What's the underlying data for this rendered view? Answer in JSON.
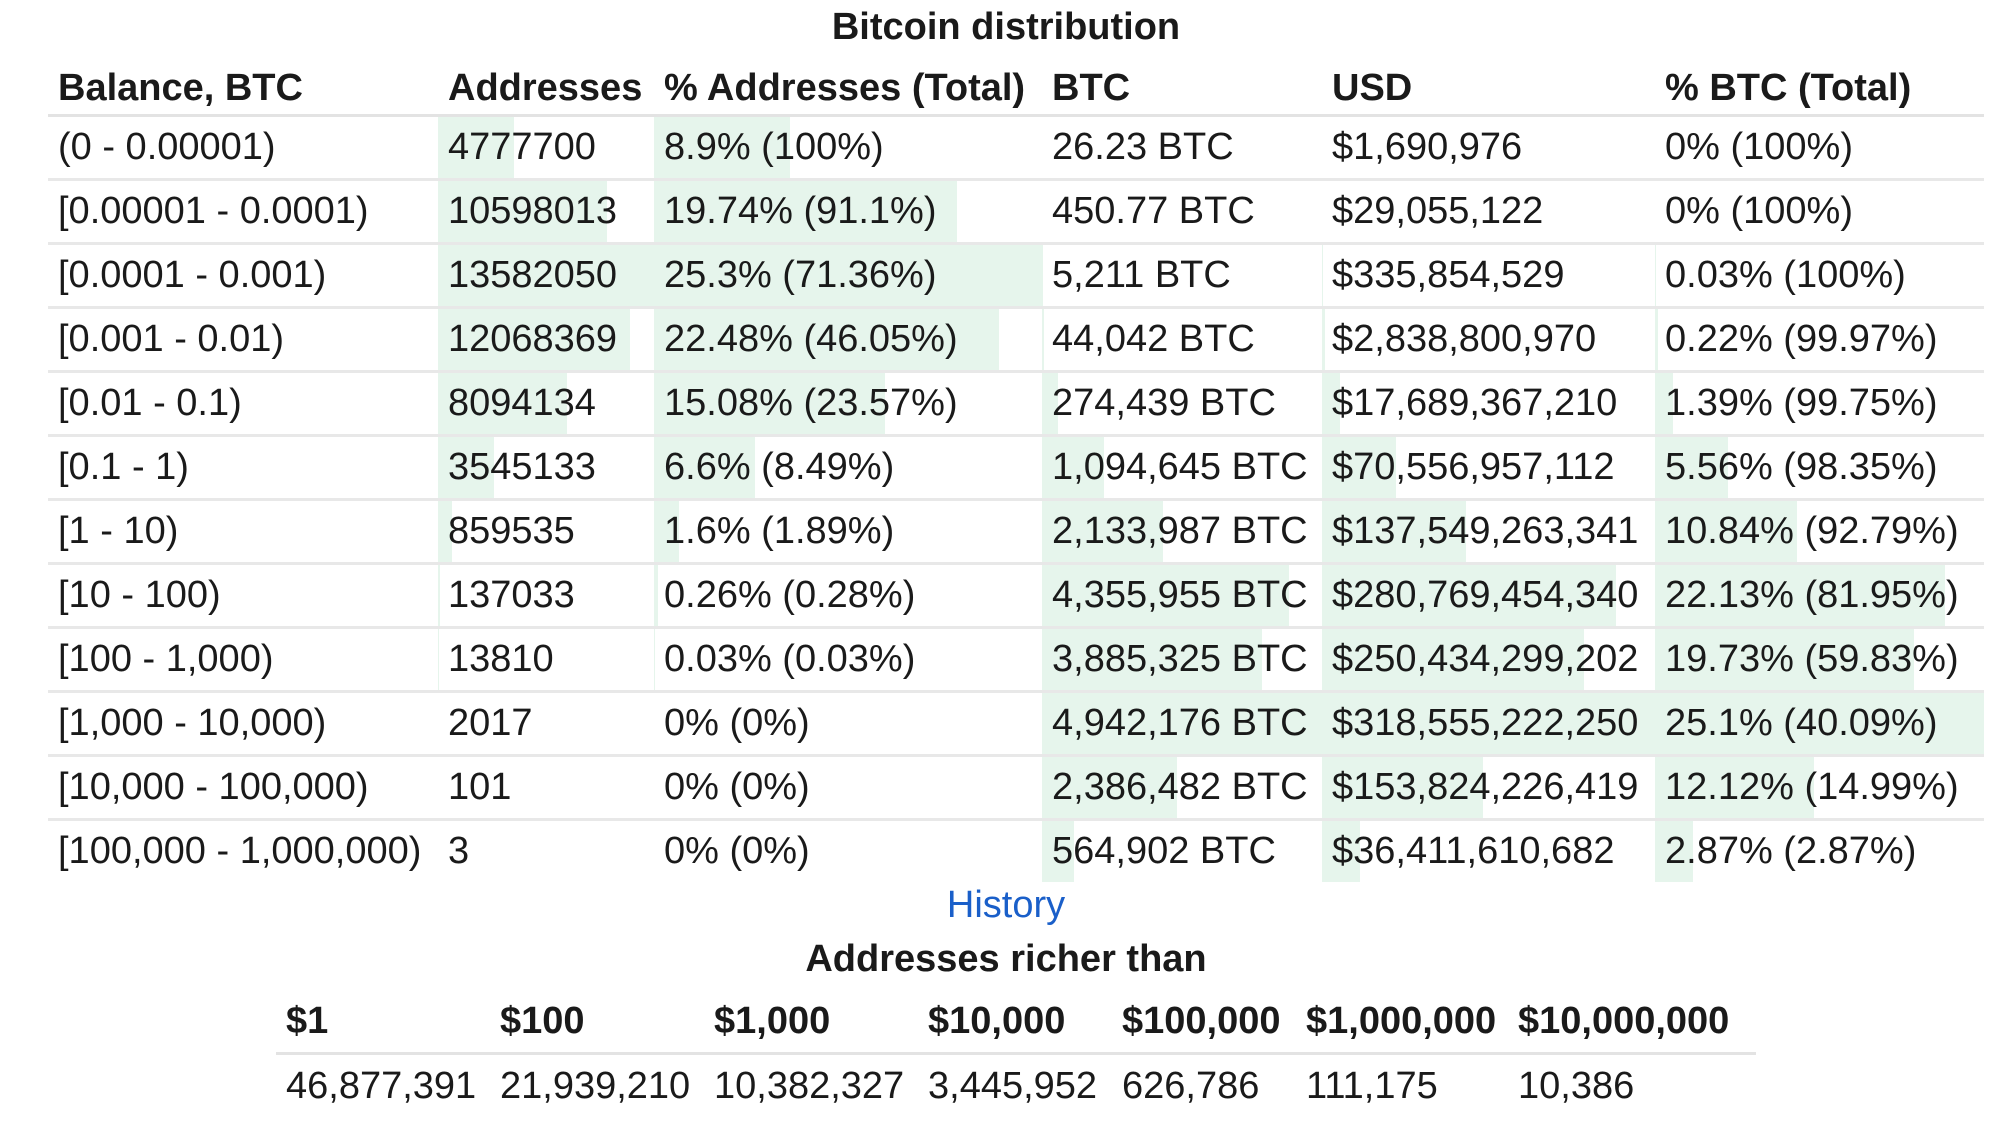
{
  "distribution": {
    "title": "Bitcoin distribution",
    "bar_color": "#e6f5ec",
    "headers": [
      "Balance, BTC",
      "Addresses",
      "% Addresses (Total)",
      "BTC",
      "USD",
      "% BTC (Total)"
    ],
    "rows": [
      {
        "balance": "(0 - 0.00001)",
        "addresses": "4777700",
        "pct_addresses": "8.9% (100%)",
        "btc": "26.23 BTC",
        "usd": "$1,690,976",
        "pct_btc": "0% (100%)"
      },
      {
        "balance": "[0.00001 - 0.0001)",
        "addresses": "10598013",
        "pct_addresses": "19.74% (91.1%)",
        "btc": "450.77 BTC",
        "usd": "$29,055,122",
        "pct_btc": "0% (100%)"
      },
      {
        "balance": "[0.0001 - 0.001)",
        "addresses": "13582050",
        "pct_addresses": "25.3% (71.36%)",
        "btc": "5,211 BTC",
        "usd": "$335,854,529",
        "pct_btc": "0.03% (100%)"
      },
      {
        "balance": "[0.001 - 0.01)",
        "addresses": "12068369",
        "pct_addresses": "22.48% (46.05%)",
        "btc": "44,042 BTC",
        "usd": "$2,838,800,970",
        "pct_btc": "0.22% (99.97%)"
      },
      {
        "balance": "[0.01 - 0.1)",
        "addresses": "8094134",
        "pct_addresses": "15.08% (23.57%)",
        "btc": "274,439 BTC",
        "usd": "$17,689,367,210",
        "pct_btc": "1.39% (99.75%)"
      },
      {
        "balance": "[0.1 - 1)",
        "addresses": "3545133",
        "pct_addresses": "6.6% (8.49%)",
        "btc": "1,094,645 BTC",
        "usd": "$70,556,957,112",
        "pct_btc": "5.56% (98.35%)"
      },
      {
        "balance": "[1 - 10)",
        "addresses": "859535",
        "pct_addresses": "1.6% (1.89%)",
        "btc": "2,133,987 BTC",
        "usd": "$137,549,263,341",
        "pct_btc": "10.84% (92.79%)"
      },
      {
        "balance": "[10 - 100)",
        "addresses": "137033",
        "pct_addresses": "0.26% (0.28%)",
        "btc": "4,355,955 BTC",
        "usd": "$280,769,454,340",
        "pct_btc": "22.13% (81.95%)"
      },
      {
        "balance": "[100 - 1,000)",
        "addresses": "13810",
        "pct_addresses": "0.03% (0.03%)",
        "btc": "3,885,325 BTC",
        "usd": "$250,434,299,202",
        "pct_btc": "19.73% (59.83%)"
      },
      {
        "balance": "[1,000 - 10,000)",
        "addresses": "2017",
        "pct_addresses": "0% (0%)",
        "btc": "4,942,176 BTC",
        "usd": "$318,555,222,250",
        "pct_btc": "25.1% (40.09%)"
      },
      {
        "balance": "[10,000 - 100,000)",
        "addresses": "101",
        "pct_addresses": "0% (0%)",
        "btc": "2,386,482 BTC",
        "usd": "$153,824,226,419",
        "pct_btc": "12.12% (14.99%)"
      },
      {
        "balance": "[100,000 - 1,000,000)",
        "addresses": "3",
        "pct_addresses": "0% (0%)",
        "btc": "564,902 BTC",
        "usd": "$36,411,610,682",
        "pct_btc": "2.87% (2.87%)"
      }
    ],
    "address_share": [
      0.089,
      0.1974,
      0.253,
      0.2248,
      0.1508,
      0.066,
      0.016,
      0.0026,
      0.0003,
      0,
      0,
      0
    ],
    "btc_share": [
      0,
      0,
      0.0003,
      0.0022,
      0.0139,
      0.0556,
      0.1084,
      0.2213,
      0.1973,
      0.251,
      0.1212,
      0.0287
    ]
  },
  "history_link": "History",
  "richer": {
    "title": "Addresses richer than",
    "headers": [
      "$1",
      "$100",
      "$1,000",
      "$10,000",
      "$100,000",
      "$1,000,000",
      "$10,000,000"
    ],
    "values": [
      "46,877,391",
      "21,939,210",
      "10,382,327",
      "3,445,952",
      "626,786",
      "111,175",
      "10,386"
    ]
  }
}
